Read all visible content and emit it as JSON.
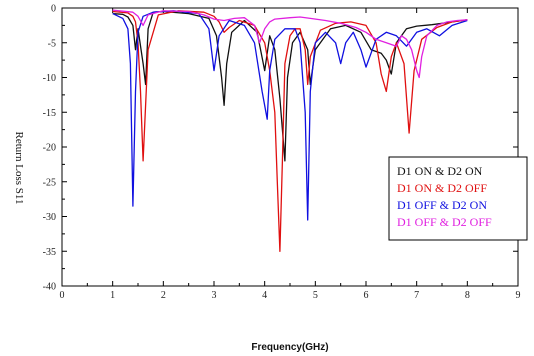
{
  "chart_data": {
    "type": "line",
    "xlabel": "Frequency(GHz)",
    "ylabel": "Return Loss S11",
    "xlim": [
      0,
      9
    ],
    "ylim": [
      -40,
      0
    ],
    "xticks": [
      0,
      1,
      2,
      3,
      4,
      5,
      6,
      7,
      8,
      9
    ],
    "yticks": [
      0,
      -5,
      -10,
      -15,
      -20,
      -25,
      -30,
      -35,
      -40
    ],
    "grid": false,
    "legend": "right",
    "series": [
      {
        "name": "D1 ON  & D2 ON",
        "color": "#111111",
        "x": [
          1.0,
          1.2,
          1.3,
          1.4,
          1.45,
          1.5,
          1.6,
          1.65,
          1.7,
          1.8,
          2.0,
          2.5,
          2.9,
          3.05,
          3.15,
          3.2,
          3.25,
          3.35,
          3.6,
          3.85,
          4.0,
          4.1,
          4.2,
          4.3,
          4.4,
          4.45,
          4.55,
          4.7,
          4.85,
          4.9,
          5.0,
          5.3,
          5.6,
          5.9,
          6.1,
          6.3,
          6.4,
          6.5,
          6.6,
          6.8,
          7.0,
          7.3,
          7.6,
          7.9,
          8.0
        ],
        "y": [
          -0.8,
          -0.9,
          -1.3,
          -2.5,
          -6.0,
          -3.0,
          -8.0,
          -11.0,
          -3.0,
          -0.6,
          -0.5,
          -0.8,
          -1.5,
          -4.0,
          -10.0,
          -14.0,
          -8.0,
          -3.5,
          -1.8,
          -3.5,
          -9.0,
          -4.0,
          -6.0,
          -13.0,
          -22.0,
          -10.0,
          -5.0,
          -3.5,
          -6.0,
          -11.0,
          -6.0,
          -3.0,
          -2.5,
          -3.5,
          -6.0,
          -6.5,
          -7.5,
          -9.5,
          -5.0,
          -3.0,
          -2.6,
          -2.4,
          -2.1,
          -1.8,
          -1.7
        ]
      },
      {
        "name": "D1 ON  & D2 OFF",
        "color": "#e01010",
        "x": [
          1.0,
          1.3,
          1.4,
          1.45,
          1.5,
          1.55,
          1.6,
          1.7,
          1.9,
          2.3,
          2.8,
          3.0,
          3.1,
          3.2,
          3.3,
          3.5,
          3.8,
          4.0,
          4.1,
          4.2,
          4.25,
          4.3,
          4.35,
          4.4,
          4.5,
          4.6,
          4.7,
          4.8,
          4.85,
          4.9,
          5.1,
          5.4,
          5.7,
          6.0,
          6.2,
          6.3,
          6.4,
          6.5,
          6.6,
          6.75,
          6.85,
          6.95,
          7.1,
          7.4,
          7.7,
          8.0
        ],
        "y": [
          -0.5,
          -0.7,
          -1.2,
          -2.0,
          -5.0,
          -12.0,
          -22.0,
          -6.0,
          -1.0,
          -0.4,
          -0.6,
          -1.2,
          -2.0,
          -3.5,
          -2.8,
          -1.8,
          -2.5,
          -5.0,
          -9.0,
          -15.0,
          -25.0,
          -35.0,
          -22.0,
          -8.0,
          -4.0,
          -3.0,
          -3.0,
          -6.0,
          -11.0,
          -7.0,
          -3.2,
          -2.2,
          -2.0,
          -2.5,
          -5.0,
          -9.5,
          -12.0,
          -7.0,
          -5.0,
          -8.0,
          -18.0,
          -9.0,
          -4.5,
          -2.8,
          -2.0,
          -1.7
        ]
      },
      {
        "name": "D1 OFF & D2 ON",
        "color": "#1010e0",
        "x": [
          1.0,
          1.2,
          1.3,
          1.35,
          1.4,
          1.45,
          1.5,
          1.6,
          1.8,
          2.2,
          2.7,
          2.9,
          3.0,
          3.1,
          3.3,
          3.6,
          3.8,
          3.95,
          4.05,
          4.1,
          4.2,
          4.4,
          4.6,
          4.7,
          4.8,
          4.85,
          4.9,
          5.0,
          5.2,
          5.4,
          5.5,
          5.6,
          5.75,
          5.9,
          6.0,
          6.2,
          6.4,
          6.6,
          6.8,
          7.0,
          7.2,
          7.45,
          7.7,
          8.0
        ],
        "y": [
          -0.8,
          -1.5,
          -3.0,
          -8.0,
          -28.5,
          -12.0,
          -3.5,
          -1.2,
          -0.6,
          -0.4,
          -0.8,
          -3.0,
          -9.0,
          -4.0,
          -1.8,
          -2.5,
          -5.0,
          -12.0,
          -16.0,
          -9.0,
          -4.5,
          -3.0,
          -3.0,
          -5.0,
          -15.0,
          -30.5,
          -12.0,
          -5.0,
          -3.5,
          -5.0,
          -8.0,
          -5.0,
          -3.5,
          -6.0,
          -8.5,
          -4.5,
          -3.5,
          -4.0,
          -5.5,
          -3.5,
          -3.0,
          -4.0,
          -2.5,
          -1.8
        ]
      },
      {
        "name": "D1 OFF & D2 OFF",
        "color": "#e020e0",
        "x": [
          1.0,
          1.4,
          1.5,
          1.6,
          1.7,
          2.0,
          2.5,
          2.8,
          3.0,
          3.2,
          3.4,
          3.6,
          3.8,
          3.9,
          4.0,
          4.1,
          4.2,
          4.5,
          4.7,
          4.9,
          5.2,
          5.5,
          5.8,
          6.0,
          6.2,
          6.4,
          6.6,
          6.7,
          6.8,
          6.9,
          7.0,
          7.05,
          7.1,
          7.2,
          7.4,
          7.6,
          7.8,
          8.0
        ],
        "y": [
          -0.3,
          -0.6,
          -1.2,
          -2.5,
          -1.0,
          -0.4,
          -0.5,
          -1.0,
          -1.6,
          -1.8,
          -1.5,
          -1.4,
          -2.5,
          -5.0,
          -3.0,
          -2.0,
          -1.6,
          -1.4,
          -1.3,
          -1.5,
          -1.8,
          -2.2,
          -2.8,
          -3.5,
          -4.5,
          -5.0,
          -5.5,
          -4.0,
          -4.5,
          -6.0,
          -9.0,
          -10.0,
          -7.0,
          -4.0,
          -2.5,
          -2.0,
          -1.8,
          -1.7
        ]
      }
    ]
  }
}
